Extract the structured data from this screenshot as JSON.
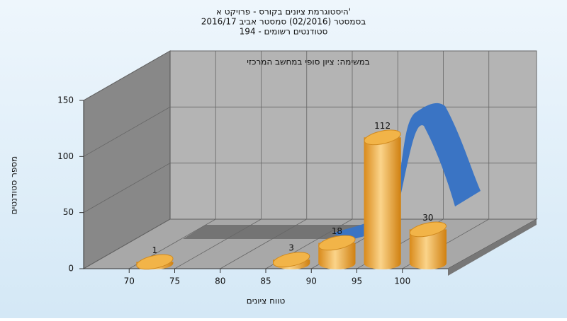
{
  "chart_data": {
    "type": "histogram",
    "title": [
      "היסטוגרמת ציונים בקורס - פרויקט א'",
      "בסמסטר (02/2016) סמסטר אביב 2016/17",
      "194 - סטודנטים רשומים"
    ],
    "annotation": "במשימה: ציון סופי במחשב המרכזי",
    "xlabel": "טווח ציונים",
    "ylabel": "מספר סטודנטים",
    "bins": [
      70,
      75,
      80,
      85,
      90,
      95,
      100,
      105
    ],
    "values": [
      1,
      0,
      0,
      3,
      18,
      112,
      30
    ],
    "color": "#f0a830",
    "xlim": [
      65,
      105
    ],
    "xticks": [
      70,
      75,
      80,
      85,
      90,
      95,
      100
    ],
    "ylim": [
      0,
      150
    ],
    "yticks": [
      0,
      50,
      100,
      150
    ],
    "grid": true
  }
}
